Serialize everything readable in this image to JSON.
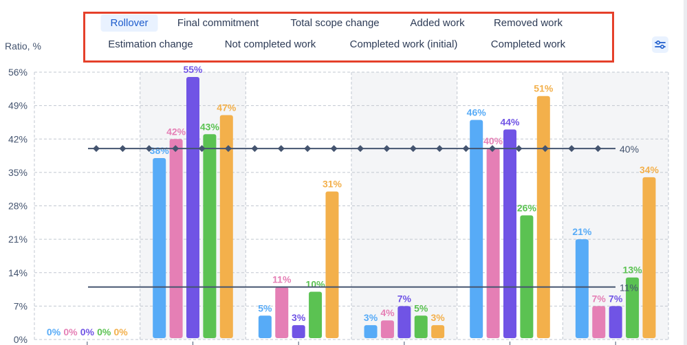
{
  "legend": {
    "items": [
      {
        "label": "Rollover",
        "active": true
      },
      {
        "label": "Final commitment",
        "active": false
      },
      {
        "label": "Total scope change",
        "active": false
      },
      {
        "label": "Added work",
        "active": false
      },
      {
        "label": "Removed work",
        "active": false
      },
      {
        "label": "Estimation change",
        "active": false
      },
      {
        "label": "Not completed work",
        "active": false
      },
      {
        "label": "Completed work (initial)",
        "active": false
      },
      {
        "label": "Completed work",
        "active": false
      }
    ]
  },
  "filter_icon": "sliders-icon",
  "chart_data": {
    "type": "bar",
    "ylabel": "Ratio, %",
    "ylim": [
      0,
      56
    ],
    "yticks": [
      "0%",
      "7%",
      "14%",
      "21%",
      "28%",
      "35%",
      "42%",
      "49%",
      "56%"
    ],
    "grid": true,
    "groups": 6,
    "series": [
      {
        "color": "#57abf7",
        "values": [
          0,
          38,
          5,
          3,
          46,
          21
        ]
      },
      {
        "color": "#e57fb5",
        "values": [
          0,
          42,
          11,
          4,
          40,
          7
        ]
      },
      {
        "color": "#7054e5",
        "values": [
          0,
          55,
          3,
          7,
          44,
          7
        ]
      },
      {
        "color": "#5bc252",
        "values": [
          0,
          43,
          10,
          5,
          26,
          13
        ]
      },
      {
        "color": "#f3b04b",
        "values": [
          0,
          47,
          31,
          3,
          51,
          34
        ]
      }
    ],
    "reference_lines": [
      {
        "value": 40,
        "label": "40%",
        "markers": "diamond",
        "color": "#44546f"
      },
      {
        "value": 11,
        "label": "11%",
        "markers": "none",
        "color": "#44546f"
      }
    ]
  }
}
